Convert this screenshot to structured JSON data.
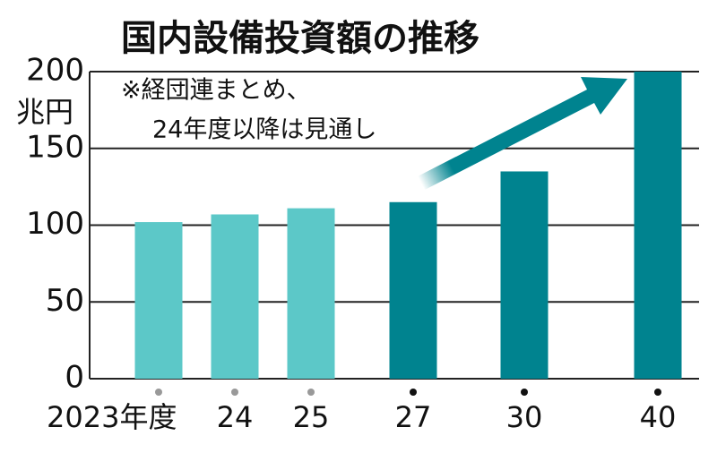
{
  "chart_data": {
    "type": "bar",
    "title": "国内設備投資額の推移",
    "y_label": "兆円",
    "annotation": [
      "※経団連まとめ、",
      "24年度以降は見通し"
    ],
    "categories": [
      "2023年度",
      "24",
      "25",
      "27",
      "30",
      "40"
    ],
    "values": [
      102,
      107,
      111,
      115,
      135,
      200
    ],
    "colors": [
      "#5cc8c8",
      "#5cc8c8",
      "#5cc8c8",
      "#00838f",
      "#00838f",
      "#00838f"
    ],
    "dot_colors": [
      "#999999",
      "#999999",
      "#999999",
      "#111111",
      "#111111",
      "#111111"
    ],
    "ylim": [
      0,
      200
    ],
    "yticks": [
      0,
      50,
      100,
      150,
      200
    ],
    "grid": true
  }
}
